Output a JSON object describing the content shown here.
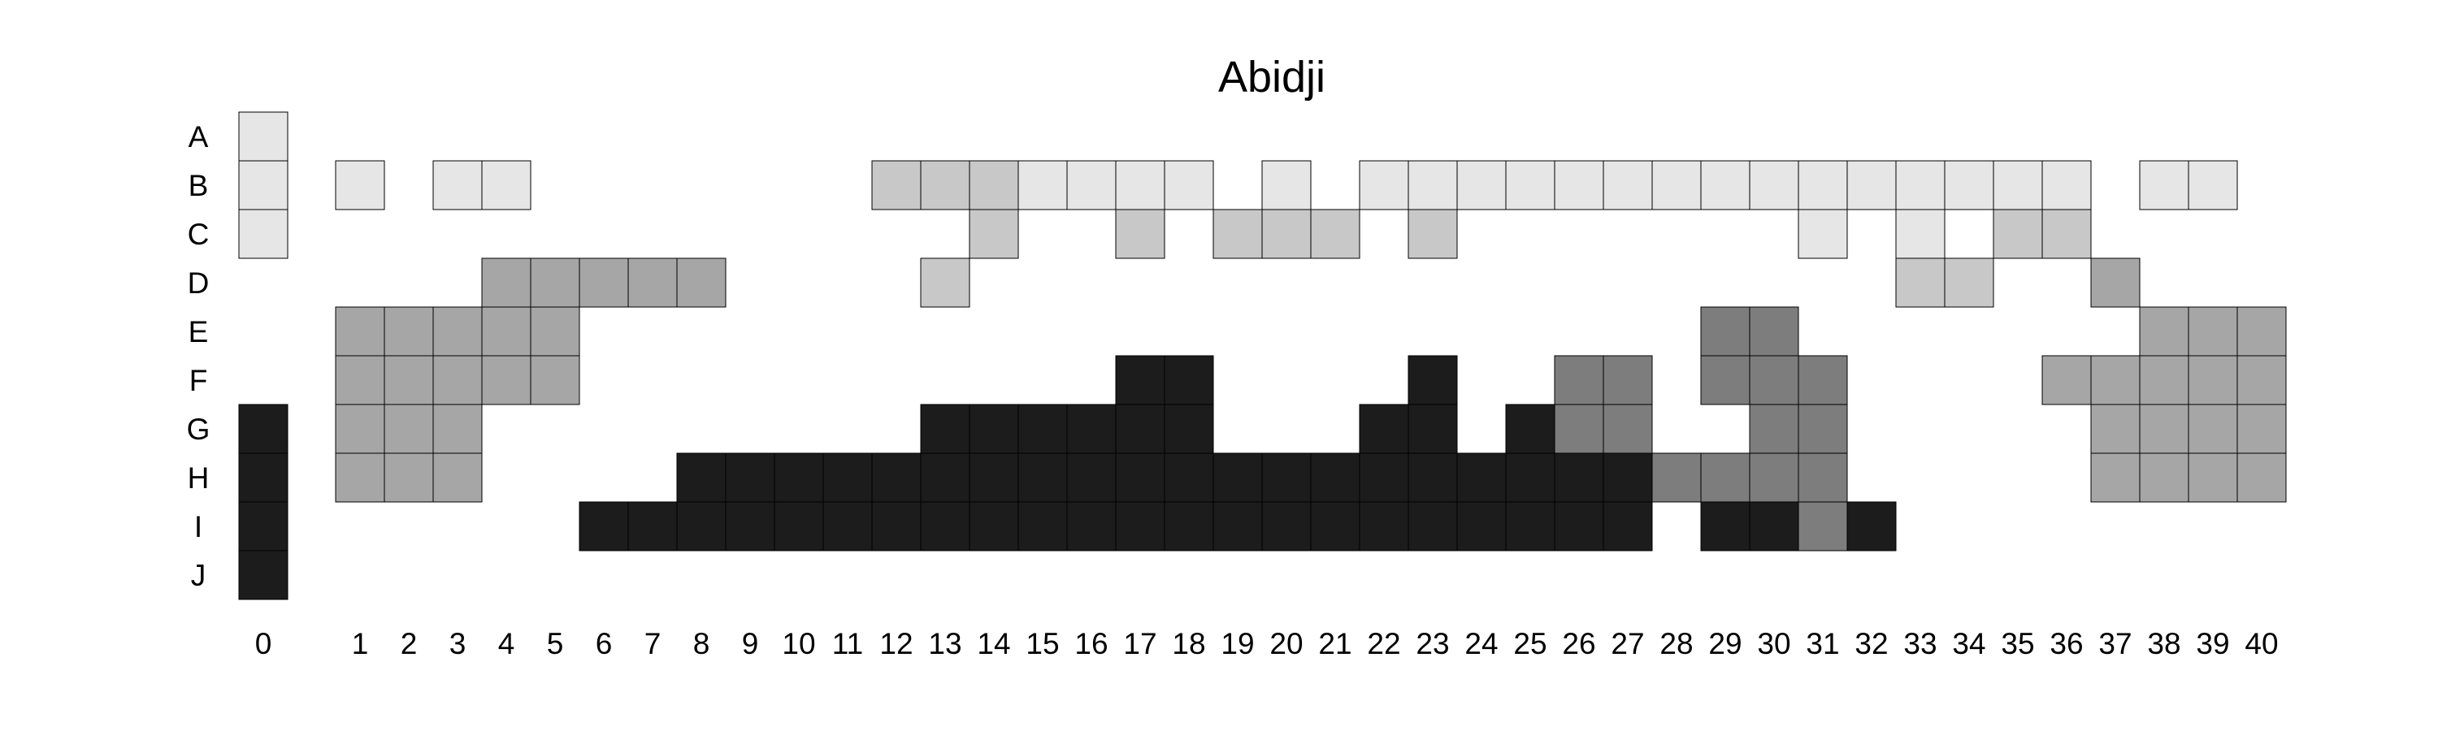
{
  "chart_data": {
    "type": "heatmap",
    "title": "Abidji",
    "xlabel": "",
    "ylabel": "",
    "grid": false,
    "legend": "none",
    "rows": [
      "A",
      "B",
      "C",
      "D",
      "E",
      "F",
      "G",
      "H",
      "I",
      "J"
    ],
    "columns": [
      "0",
      "1",
      "2",
      "3",
      "4",
      "5",
      "6",
      "7",
      "8",
      "9",
      "10",
      "11",
      "12",
      "13",
      "14",
      "15",
      "16",
      "17",
      "18",
      "19",
      "20",
      "21",
      "22",
      "23",
      "24",
      "25",
      "26",
      "27",
      "28",
      "29",
      "30",
      "31",
      "32",
      "33",
      "34",
      "35",
      "36",
      "37",
      "38",
      "39",
      "40"
    ],
    "colors": {
      "1": "#e6e6e6",
      "2": "#c8c8c8",
      "3": "#a6a6a6",
      "4": "#7d7d7d",
      "5": "#1c1c1c"
    },
    "grid_values": [
      "1........................................",
      "11.11.......2221111.1.111111111111111.11.",
      "1.............2..2.222.2.......1.1.22....",
      "....33333....2...................22..3...",
      ".33333.......................44.......333",
      ".33333...........55....5..44.444....33333",
      "5333.........555555...55.544..44.....3333",
      "5333....555555555555555555554444.....3333",
      "5.....5555555555555555555555.5545........",
      "5........................................"
    ]
  }
}
